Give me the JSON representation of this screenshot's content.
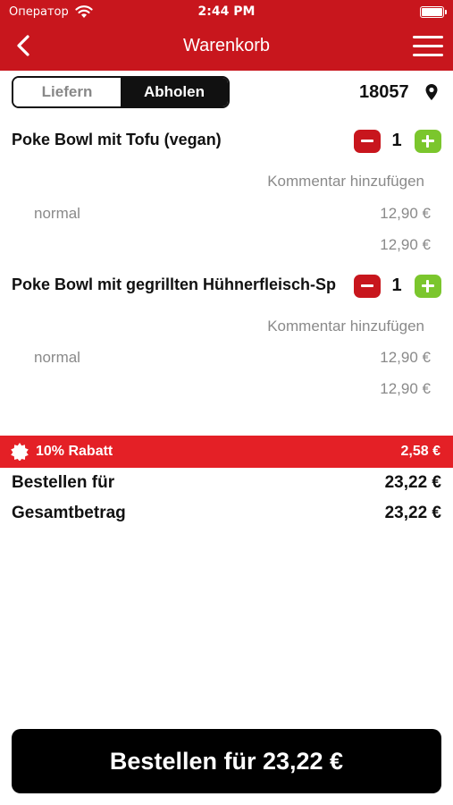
{
  "status_bar": {
    "carrier": "Оператор",
    "time": "2:44 PM"
  },
  "header": {
    "title": "Warenkorb"
  },
  "toggle": {
    "options": [
      "Liefern",
      "Abholen"
    ],
    "selected": "Abholen"
  },
  "location": {
    "zip": "18057"
  },
  "cart": {
    "items": [
      {
        "name": "Poke Bowl mit Tofu (vegan)",
        "quantity": "1",
        "comment_label": "Kommentar hinzufügen",
        "variant": "normal",
        "variant_price": "12,90 €",
        "total_price": "12,90 €"
      },
      {
        "name": "Poke Bowl mit gegrillten Hühnerfleisch-Sp",
        "quantity": "1",
        "comment_label": "Kommentar hinzufügen",
        "variant": "normal",
        "variant_price": "12,90 €",
        "total_price": "12,90 €"
      }
    ]
  },
  "summary": {
    "discount_label": "10% Rabatt",
    "discount_value": "2,58 €",
    "order_for_label": "Bestellen für",
    "order_for_value": "23,22 €",
    "total_label": "Gesamtbetrag",
    "total_value": "23,22 €"
  },
  "order_button": {
    "label": "Bestellen für 23,22 €"
  },
  "colors": {
    "header_red": "#c8161d",
    "discount_red": "#e42026",
    "plus_green": "#7bc62d"
  }
}
